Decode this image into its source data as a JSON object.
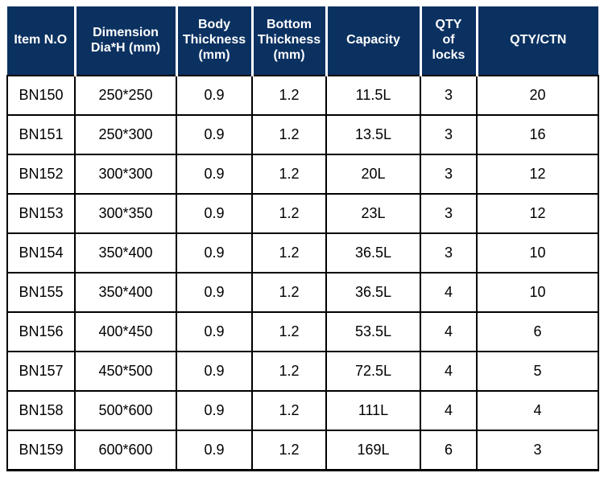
{
  "page": {
    "background_color": "#ffffff"
  },
  "table": {
    "title": "product-specification-table",
    "colors": {
      "header_background": "#0b3161",
      "header_text": "#ffffff",
      "header_divider": "#ffffff",
      "grid_border": "#000000",
      "body_text": "#000000",
      "body_background": "#ffffff"
    },
    "header": {
      "columns": [
        {
          "id": "item_no",
          "label": "Item N.O"
        },
        {
          "id": "dimension",
          "label": "Dimension\nDia*H (mm)"
        },
        {
          "id": "body_thickness",
          "label": "Body\nThickness\n(mm)"
        },
        {
          "id": "bottom_thickness",
          "label": "Bottom\nThickness\n(mm)"
        },
        {
          "id": "capacity",
          "label": "Capacity"
        },
        {
          "id": "qty_of_locks",
          "label": "QTY\nof\nlocks"
        },
        {
          "id": "qty_ctn",
          "label": "QTY/CTN"
        }
      ]
    },
    "rows": [
      [
        "BN150",
        "250*250",
        "0.9",
        "1.2",
        "11.5L",
        "3",
        "20"
      ],
      [
        "BN151",
        "250*300",
        "0.9",
        "1.2",
        "13.5L",
        "3",
        "16"
      ],
      [
        "BN152",
        "300*300",
        "0.9",
        "1.2",
        "20L",
        "3",
        "12"
      ],
      [
        "BN153",
        "300*350",
        "0.9",
        "1.2",
        "23L",
        "3",
        "12"
      ],
      [
        "BN154",
        "350*400",
        "0.9",
        "1.2",
        "36.5L",
        "3",
        "10"
      ],
      [
        "BN155",
        "350*400",
        "0.9",
        "1.2",
        "36.5L",
        "4",
        "10"
      ],
      [
        "BN156",
        "400*450",
        "0.9",
        "1.2",
        "53.5L",
        "4",
        "6"
      ],
      [
        "BN157",
        "450*500",
        "0.9",
        "1.2",
        "72.5L",
        "4",
        "5"
      ],
      [
        "BN158",
        "500*600",
        "0.9",
        "1.2",
        "111L",
        "4",
        "4"
      ],
      [
        "BN159",
        "600*600",
        "0.9",
        "1.2",
        "169L",
        "6",
        "3"
      ]
    ]
  }
}
